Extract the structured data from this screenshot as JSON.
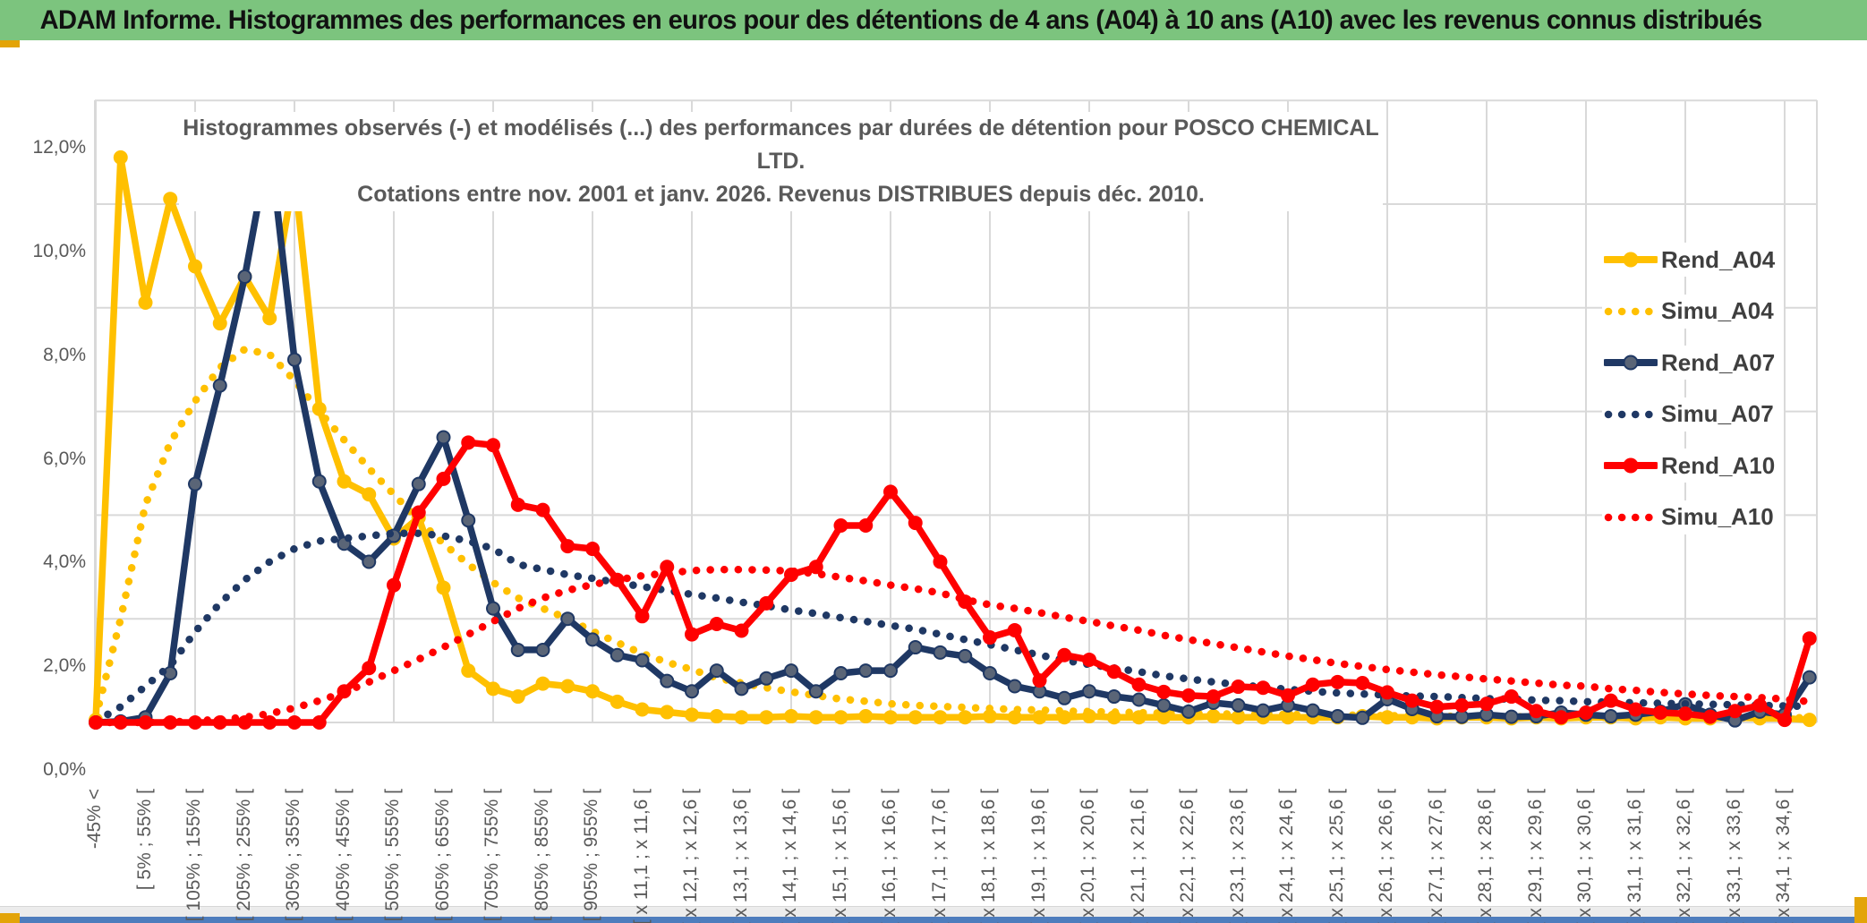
{
  "banner": {
    "title": "ADAM Informe. Histogrammes des performances en euros pour des détentions de 4 ans (A04) à 10 ans (A10) avec les revenus connus distribués"
  },
  "theme": {
    "banner_bg": "#7cc47e",
    "accent_gold": "#e3a408",
    "footer_bar_blue": "#4e7dbd",
    "gridline": "#d9d9d9",
    "axis_text": "#595959",
    "title_text": "#595959",
    "legend_text": "#3f3f3f"
  },
  "chart_data": {
    "type": "line",
    "title": "Histogrammes observés (-) et modélisés (...) des performances par durées de détention pour POSCO CHEMICAL LTD.",
    "subtitle": "Cotations entre nov. 2001 et janv. 2026. Revenus DISTRIBUES depuis déc. 2010.",
    "ylabel": "",
    "xlabel": "",
    "ylim": [
      0,
      12
    ],
    "grid": true,
    "legend_position": "right-inside",
    "y_ticks": [
      "0,0%",
      "2,0%",
      "4,0%",
      "6,0%",
      "8,0%",
      "10,0%",
      "12,0%"
    ],
    "x_note": "70 bins; a label is shown on every second bin",
    "bins_total": 70,
    "categories": [
      "-45% <",
      "[ 5% ; 55% [",
      "[ 105% ; 155% [",
      "[ 205% ; 255% [",
      "[ 305% ; 355% [",
      "[ 405% ; 455% [",
      "[ 505% ; 555% [",
      "[ 605% ; 655% [",
      "[ 705% ; 755% [",
      "[ 805% ; 855% [",
      "[ 905% ; 955% [",
      "[ x 11,1 ; x 11,6 [",
      "[ x 12,1 ; x 12,6 [",
      "[ x 13,1 ; x 13,6 [",
      "[ x 14,1 ; x 14,6 [",
      "[ x 15,1 ; x 15,6 [",
      "[ x 16,1 ; x 16,6 [",
      "[ x 17,1 ; x 17,6 [",
      "[ x 18,1 ; x 18,6 [",
      "[ x 19,1 ; x 19,6 [",
      "[ x 20,1 ; x 20,6 [",
      "[ x 21,1 ; x 21,6 [",
      "[ x 22,1 ; x 22,6 [",
      "[ x 23,1 ; x 23,6 [",
      "[ x 24,1 ; x 24,6 [",
      "[ x 25,1 ; x 25,6 [",
      "[ x 26,1 ; x 26,6 [",
      "[ x 27,1 ; x 27,6 [",
      "[ x 28,1 ; x 28,6 [",
      "[ x 29,1 ; x 29,6 [",
      "[ x 30,1 ; x 30,6 [",
      "[ x 31,1 ; x 31,6 [",
      "[ x 32,1 ; x 32,6 [",
      "[ x 33,1 ; x 33,6 [",
      "[ x 34,1 ; x 34,6 ["
    ],
    "series": [
      {
        "name": "Rend_A04",
        "style": "solid",
        "color": "#FFC000",
        "marker": "#FFC000",
        "values": [
          0.05,
          10.9,
          8.1,
          10.1,
          8.8,
          7.7,
          8.6,
          7.8,
          10.6,
          6.05,
          4.65,
          4.4,
          3.55,
          3.95,
          2.6,
          1.0,
          0.65,
          0.5,
          0.75,
          0.7,
          0.6,
          0.4,
          0.25,
          0.2,
          0.15,
          0.12,
          0.1,
          0.1,
          0.12,
          0.1,
          0.1,
          0.12,
          0.1,
          0.1,
          0.1,
          0.1,
          0.12,
          0.1,
          0.1,
          0.1,
          0.12,
          0.1,
          0.1,
          0.1,
          0.1,
          0.12,
          0.1,
          0.1,
          0.1,
          0.1,
          0.1,
          0.12,
          0.1,
          0.1,
          0.08,
          0.1,
          0.1,
          0.08,
          0.1,
          0.08,
          0.1,
          0.1,
          0.08,
          0.1,
          0.08,
          0.08,
          0.1,
          0.08,
          0.08,
          0.05
        ]
      },
      {
        "name": "Simu_A04",
        "style": "dotted",
        "color": "#FFC000",
        "values": [
          0.1,
          2.0,
          4.2,
          5.4,
          6.2,
          6.85,
          7.2,
          7.1,
          6.6,
          6.0,
          5.45,
          4.9,
          4.4,
          3.9,
          3.45,
          3.05,
          2.7,
          2.4,
          2.2,
          2.0,
          1.76,
          1.54,
          1.33,
          1.16,
          1.02,
          0.86,
          0.76,
          0.67,
          0.59,
          0.52,
          0.45,
          0.41,
          0.36,
          0.33,
          0.31,
          0.29,
          0.27,
          0.25,
          0.24,
          0.22,
          0.21,
          0.2,
          0.19,
          0.18,
          0.17,
          0.17,
          0.16,
          0.16,
          0.15,
          0.15,
          0.14,
          0.14,
          0.13,
          0.13,
          0.12,
          0.12,
          0.12,
          0.11,
          0.11,
          0.11,
          0.1,
          0.1,
          0.1,
          0.1,
          0.1,
          0.09,
          0.09,
          0.09,
          0.09,
          0.09
        ]
      },
      {
        "name": "Rend_A07",
        "style": "solid",
        "color": "#1F3864",
        "marker": "#5a6577",
        "values": [
          0,
          0.02,
          0.1,
          0.95,
          4.6,
          6.5,
          8.6,
          11.2,
          7.0,
          4.65,
          3.45,
          3.1,
          3.6,
          4.6,
          5.5,
          3.9,
          2.2,
          1.4,
          1.4,
          2.0,
          1.6,
          1.3,
          1.2,
          0.8,
          0.6,
          1.0,
          0.65,
          0.85,
          1.0,
          0.6,
          0.95,
          1.0,
          1.0,
          1.45,
          1.35,
          1.28,
          0.95,
          0.7,
          0.6,
          0.47,
          0.6,
          0.5,
          0.44,
          0.33,
          0.21,
          0.38,
          0.33,
          0.23,
          0.33,
          0.23,
          0.12,
          0.09,
          0.45,
          0.26,
          0.12,
          0.11,
          0.15,
          0.11,
          0.12,
          0.19,
          0.15,
          0.12,
          0.15,
          0.21,
          0.35,
          0.15,
          0.04,
          0.21,
          0.15,
          0.87
        ]
      },
      {
        "name": "Simu_A07",
        "style": "dotted",
        "color": "#1F3864",
        "values": [
          0.02,
          0.3,
          0.7,
          1.1,
          1.75,
          2.3,
          2.75,
          3.1,
          3.35,
          3.5,
          3.55,
          3.6,
          3.65,
          3.65,
          3.6,
          3.5,
          3.35,
          3.05,
          2.95,
          2.85,
          2.78,
          2.7,
          2.62,
          2.55,
          2.47,
          2.4,
          2.32,
          2.25,
          2.17,
          2.1,
          2.02,
          1.95,
          1.87,
          1.8,
          1.7,
          1.6,
          1.5,
          1.4,
          1.3,
          1.2,
          1.12,
          1.05,
          0.98,
          0.9,
          0.84,
          0.78,
          0.73,
          0.68,
          0.64,
          0.6,
          0.57,
          0.55,
          0.53,
          0.51,
          0.5,
          0.48,
          0.46,
          0.45,
          0.43,
          0.42,
          0.4,
          0.39,
          0.38,
          0.37,
          0.36,
          0.35,
          0.34,
          0.33,
          0.32,
          0.31
        ]
      },
      {
        "name": "Rend_A10",
        "style": "solid",
        "color": "#FF0000",
        "marker": "#FF0000",
        "values": [
          0,
          0,
          0,
          0,
          0,
          0,
          0,
          0,
          0,
          0,
          0.6,
          1.05,
          2.65,
          4.05,
          4.7,
          5.4,
          5.35,
          4.2,
          4.1,
          3.4,
          3.35,
          2.75,
          2.05,
          3.0,
          1.7,
          1.9,
          1.77,
          2.3,
          2.85,
          3.0,
          3.8,
          3.8,
          4.45,
          3.85,
          3.1,
          2.33,
          1.64,
          1.78,
          0.81,
          1.3,
          1.21,
          0.98,
          0.73,
          0.59,
          0.52,
          0.5,
          0.69,
          0.67,
          0.52,
          0.73,
          0.78,
          0.76,
          0.58,
          0.42,
          0.3,
          0.33,
          0.36,
          0.5,
          0.22,
          0.1,
          0.19,
          0.42,
          0.25,
          0.19,
          0.17,
          0.11,
          0.22,
          0.33,
          0.05,
          1.62
        ]
      },
      {
        "name": "Simu_A10",
        "style": "dotted",
        "color": "#FF0000",
        "values": [
          0,
          0,
          0,
          0.01,
          0.03,
          0.06,
          0.1,
          0.17,
          0.28,
          0.42,
          0.58,
          0.78,
          1.0,
          1.22,
          1.45,
          1.7,
          1.95,
          2.2,
          2.4,
          2.55,
          2.66,
          2.75,
          2.83,
          2.88,
          2.93,
          2.95,
          2.95,
          2.94,
          2.92,
          2.87,
          2.8,
          2.73,
          2.65,
          2.58,
          2.5,
          2.37,
          2.27,
          2.2,
          2.12,
          2.03,
          1.95,
          1.86,
          1.78,
          1.68,
          1.6,
          1.52,
          1.44,
          1.36,
          1.28,
          1.21,
          1.14,
          1.08,
          1.02,
          0.97,
          0.92,
          0.88,
          0.84,
          0.8,
          0.76,
          0.72,
          0.7,
          0.65,
          0.62,
          0.58,
          0.55,
          0.52,
          0.5,
          0.48,
          0.45,
          0.4
        ]
      }
    ]
  }
}
